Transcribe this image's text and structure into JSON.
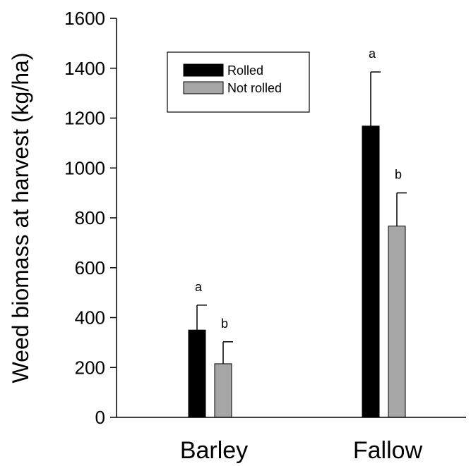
{
  "chart_data": {
    "type": "bar",
    "title": "",
    "xlabel": "",
    "ylabel": "Weed biomass at harvest (kg/ha)",
    "ylim": [
      0,
      1600
    ],
    "yticks": [
      0,
      200,
      400,
      600,
      800,
      1000,
      1200,
      1400,
      1600
    ],
    "categories": [
      "Barley",
      "Fallow"
    ],
    "series": [
      {
        "name": "Rolled",
        "color": "#000000",
        "values": [
          350,
          1168
        ],
        "errors": [
          100,
          217
        ],
        "significance": [
          "a",
          "a"
        ]
      },
      {
        "name": "Not rolled",
        "color": "#a6a6a6",
        "values": [
          215,
          767
        ],
        "errors": [
          88,
          133
        ],
        "significance": [
          "b",
          "b"
        ]
      }
    ],
    "legend_position": "top-left",
    "grid": false
  }
}
